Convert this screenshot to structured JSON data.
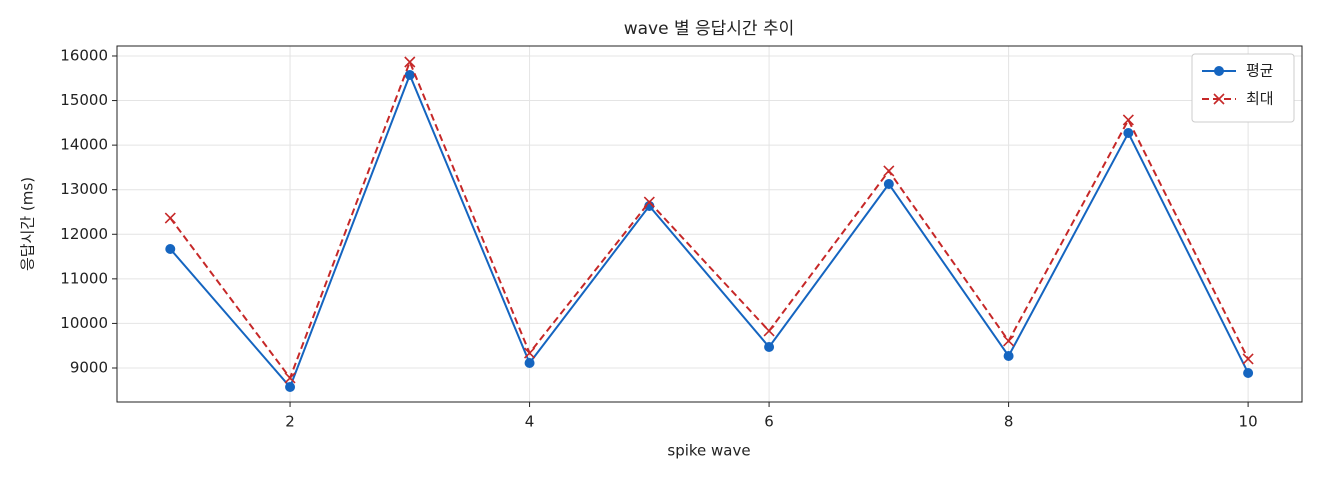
{
  "chart_data": {
    "type": "line",
    "title": "wave 별 응답시간 추이",
    "x_label": "spike wave",
    "y_label": "응답시간 (ms)",
    "x": [
      1,
      2,
      3,
      4,
      5,
      6,
      7,
      8,
      9,
      10
    ],
    "series": [
      {
        "name": "평균",
        "color": "#1565c0",
        "marker": "circle",
        "dash": "solid",
        "values": [
          11670,
          8573,
          15574,
          9112,
          12635,
          9471,
          13128,
          9269,
          14272,
          8888
        ]
      },
      {
        "name": "최대",
        "color": "#c62828",
        "marker": "x",
        "dash": "dashed",
        "values": [
          12365,
          8776,
          15865,
          9336,
          12724,
          9830,
          13420,
          9606,
          14564,
          9202
        ]
      }
    ],
    "xlim": [
      0.555,
      10.45
    ],
    "xticks": [
      2,
      4,
      6,
      8,
      10
    ],
    "ylim": [
      8237,
      16224
    ],
    "yticks": [
      9000,
      10000,
      11000,
      12000,
      13000,
      14000,
      15000,
      16000
    ],
    "grid": true,
    "legend": "upper-right"
  }
}
